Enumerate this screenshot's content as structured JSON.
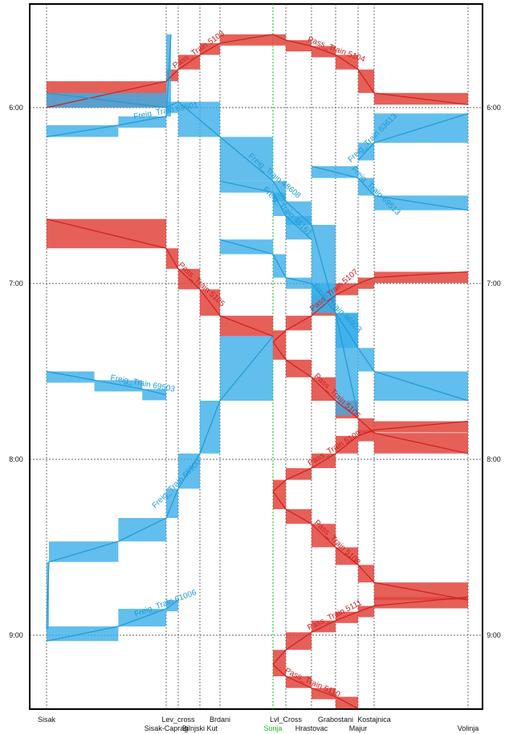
{
  "chart_data": {
    "type": "line",
    "title": "",
    "xlabel": "",
    "ylabel": "",
    "y_axis": "time",
    "y_direction": "down",
    "ylim": [
      "5:35",
      "9:25"
    ],
    "y_ticks": [
      "6:00",
      "7:00",
      "8:00",
      "9:00"
    ],
    "grid": true,
    "stations": [
      {
        "name": "Sisak",
        "km": 0
      },
      {
        "name": "Sisak-Caprag",
        "km": 5
      },
      {
        "name": "Lev_cross",
        "km": 6
      },
      {
        "name": "Bilnjski Kut",
        "km": 7
      },
      {
        "name": "Brdani",
        "km": 8
      },
      {
        "name": "Sunja",
        "km": 9,
        "color": "#22bb22"
      },
      {
        "name": "Lvl_Cross",
        "km": 10
      },
      {
        "name": "Hrastovac",
        "km": 11
      },
      {
        "name": "Grabostani",
        "km": 12
      },
      {
        "name": "Majur",
        "km": 13
      },
      {
        "name": "Kostajnica",
        "km": 14
      },
      {
        "name": "Volinja",
        "km": 18
      }
    ],
    "colors": {
      "passenger": "#e0443c",
      "freight": "#3aaee8"
    },
    "series": [
      {
        "name": "Pass_Train 5104",
        "kind": "passenger",
        "points": [
          [
            9,
            "5:35"
          ],
          [
            10,
            "5:37"
          ],
          [
            11,
            "5:39"
          ],
          [
            12,
            "5:42"
          ],
          [
            13,
            "5:47"
          ],
          [
            14,
            "5:55"
          ],
          [
            18,
            "5:59"
          ]
        ]
      },
      {
        "name": "Pass_Train 5103",
        "kind": "passenger",
        "points": [
          [
            0,
            "6:00"
          ],
          [
            5,
            "5:51"
          ],
          [
            6,
            "5:47"
          ],
          [
            7,
            "5:42"
          ],
          [
            8,
            "5:38"
          ],
          [
            9,
            "5:35"
          ]
        ]
      },
      {
        "name": "Pass_Train 5107",
        "kind": "passenger",
        "points": [
          [
            9,
            "7:20"
          ],
          [
            10,
            "7:16"
          ],
          [
            11,
            "7:11"
          ],
          [
            12,
            "7:04"
          ],
          [
            13,
            "7:00"
          ],
          [
            14,
            "6:58"
          ],
          [
            18,
            "6:56"
          ]
        ]
      },
      {
        "name": "Pass_Train 5105",
        "kind": "passenger",
        "points": [
          [
            0,
            "6:38"
          ],
          [
            5,
            "6:48"
          ],
          [
            6,
            "6:55"
          ],
          [
            7,
            "7:02"
          ],
          [
            8,
            "7:11"
          ],
          [
            9,
            "7:18"
          ]
        ]
      },
      {
        "name": "Pass_Train 5106",
        "kind": "passenger",
        "points": [
          [
            9,
            "7:20"
          ],
          [
            10,
            "7:26"
          ],
          [
            11,
            "7:32"
          ],
          [
            12,
            "7:40"
          ],
          [
            13,
            "7:46"
          ],
          [
            14,
            "7:51"
          ],
          [
            18,
            "7:58"
          ]
        ]
      },
      {
        "name": "Pass_Train 5108",
        "kind": "passenger",
        "points": [
          [
            9,
            "8:11"
          ],
          [
            10,
            "8:17"
          ],
          [
            11,
            "8:22"
          ],
          [
            12,
            "8:30"
          ],
          [
            13,
            "8:36"
          ],
          [
            14,
            "8:42"
          ],
          [
            18,
            "8:48"
          ]
        ]
      },
      {
        "name": "Pass_Train 5109",
        "kind": "passenger",
        "points": [
          [
            9,
            "8:11"
          ],
          [
            10,
            "8:07"
          ],
          [
            11,
            "8:03"
          ],
          [
            12,
            "7:58"
          ],
          [
            13,
            "7:52"
          ],
          [
            14,
            "7:50"
          ],
          [
            18,
            "7:47"
          ]
        ]
      },
      {
        "name": "Pass_Train 5111",
        "kind": "passenger",
        "points": [
          [
            9,
            "9:10"
          ],
          [
            10,
            "9:05"
          ],
          [
            11,
            "8:59"
          ],
          [
            12,
            "8:55"
          ],
          [
            13,
            "8:52"
          ],
          [
            14,
            "8:50"
          ],
          [
            18,
            "8:47"
          ]
        ]
      },
      {
        "name": "Pass_Train 5110",
        "kind": "passenger",
        "points": [
          [
            9,
            "9:10"
          ],
          [
            10,
            "9:14"
          ],
          [
            11,
            "9:18"
          ],
          [
            12,
            "9:21"
          ],
          [
            13,
            "9:25"
          ]
        ]
      },
      {
        "name": "Freig_Train 69501",
        "kind": "freight",
        "points": [
          [
            0,
            "6:10"
          ],
          [
            3,
            "6:06"
          ],
          [
            5,
            "6:03"
          ],
          [
            5.4,
            "5:35"
          ]
        ]
      },
      {
        "name": "Freig_Train 48608",
        "kind": "freight",
        "points": [
          [
            0,
            "5:55"
          ],
          [
            5,
            "6:00"
          ],
          [
            6,
            "5:58"
          ],
          [
            8,
            "6:10"
          ],
          [
            9,
            "6:25"
          ],
          [
            10,
            "6:32"
          ],
          [
            11,
            "6:40"
          ],
          [
            12,
            "7:10"
          ],
          [
            13,
            "7:45"
          ]
        ]
      },
      {
        "name": "Freig_Train 45161",
        "kind": "freight",
        "points": [
          [
            8,
            "6:25"
          ],
          [
            9,
            "6:29"
          ],
          [
            10,
            "6:37"
          ],
          [
            11,
            "6:45"
          ]
        ]
      },
      {
        "name": "Freig_Train 69513",
        "kind": "freight",
        "points": [
          [
            11,
            "6:20"
          ],
          [
            13,
            "6:24"
          ],
          [
            14,
            "6:30"
          ],
          [
            18,
            "6:35"
          ]
        ]
      },
      {
        "name": "Freig_Train 63613",
        "kind": "freight",
        "points": [
          [
            13,
            "6:18"
          ],
          [
            14,
            "6:12"
          ],
          [
            18,
            "6:02"
          ]
        ]
      },
      {
        "name": "Freig_Train 46923",
        "kind": "freight",
        "points": [
          [
            8,
            "6:45"
          ],
          [
            9,
            "6:50"
          ],
          [
            10,
            "6:58"
          ],
          [
            11,
            "7:00"
          ],
          [
            12,
            "7:10"
          ],
          [
            13,
            "7:22"
          ],
          [
            14,
            "7:30"
          ],
          [
            18,
            "7:40"
          ]
        ]
      },
      {
        "name": "Freig_Train 69503",
        "kind": "freight",
        "points": [
          [
            0,
            "7:30"
          ],
          [
            2,
            "7:33"
          ],
          [
            4,
            "7:36"
          ],
          [
            5,
            "7:38"
          ]
        ]
      },
      {
        "name": "Freig_Train 66900",
        "kind": "freight",
        "points": [
          [
            0,
            "8:58"
          ],
          [
            0.1,
            "8:35"
          ],
          [
            3,
            "8:28"
          ],
          [
            5,
            "8:20"
          ],
          [
            6,
            "8:10"
          ],
          [
            7,
            "7:58"
          ],
          [
            8,
            "7:40"
          ],
          [
            9,
            "7:18"
          ]
        ]
      },
      {
        "name": "Freig_Train 61006",
        "kind": "freight",
        "points": [
          [
            0,
            "9:02"
          ],
          [
            3,
            "8:57"
          ],
          [
            5,
            "8:51"
          ],
          [
            6,
            "8:48"
          ]
        ]
      }
    ]
  }
}
